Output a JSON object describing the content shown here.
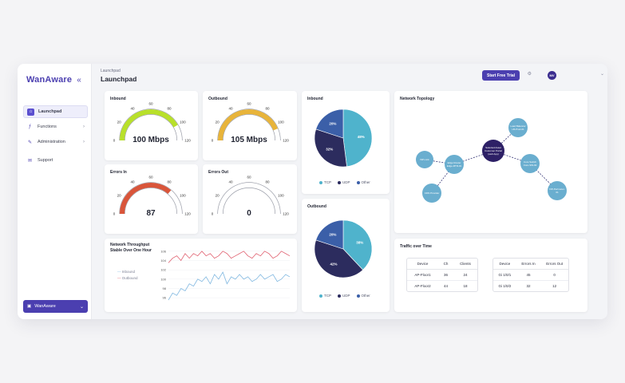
{
  "app": {
    "name": "WanAware"
  },
  "sidebar": {
    "items": [
      {
        "label": "Launchpad",
        "icon": "home-icon",
        "active": true
      },
      {
        "label": "Functions",
        "icon": "function-icon"
      },
      {
        "label": "Administration",
        "icon": "wrench-icon"
      },
      {
        "label": "Support",
        "icon": "mail-icon"
      }
    ],
    "workspace": "WanAware"
  },
  "header": {
    "breadcrumb": "Launchpad",
    "title": "Launchpad",
    "trial_label": "Start Free Trial",
    "avatar_initials": "MV"
  },
  "gauges": [
    {
      "title": "Inbound",
      "value_label": "100 Mbps",
      "value": 100,
      "max": 120,
      "color": "#b8e02a",
      "ticks": [
        "0",
        "20",
        "40",
        "60",
        "80",
        "100",
        "120"
      ]
    },
    {
      "title": "Outbound",
      "value_label": "105 Mbps",
      "value": 105,
      "max": 120,
      "color": "#e8b43a",
      "ticks": [
        "0",
        "20",
        "40",
        "60",
        "80",
        "100",
        "120"
      ]
    },
    {
      "title": "Errors In",
      "value_label": "87",
      "value": 87,
      "max": 120,
      "color": "#d9553a",
      "ticks": [
        "0",
        "20",
        "40",
        "60",
        "80",
        "100",
        "120"
      ]
    },
    {
      "title": "Errors Out",
      "value_label": "0",
      "value": 0,
      "max": 120,
      "color": "#cccccc",
      "ticks": [
        "0",
        "20",
        "40",
        "60",
        "80",
        "100",
        "120"
      ]
    }
  ],
  "pies": [
    {
      "title": "Inbound",
      "slices": [
        {
          "label": "TCP",
          "value": 48,
          "color": "#4fb3cc"
        },
        {
          "label": "UDP",
          "value": 32,
          "color": "#2c2c5e"
        },
        {
          "label": "Other",
          "value": 20,
          "color": "#3b5fa8"
        }
      ],
      "labels": [
        "48%",
        "32%",
        "20%"
      ]
    },
    {
      "title": "Outbound",
      "slices": [
        {
          "label": "TCP",
          "value": 38,
          "color": "#4fb3cc"
        },
        {
          "label": "UDP",
          "value": 42,
          "color": "#2c2c5e"
        },
        {
          "label": "Other",
          "value": 20,
          "color": "#3b5fa8"
        }
      ],
      "labels": [
        "38%",
        "42%",
        "20%"
      ]
    }
  ],
  "throughput": {
    "title": "Network Throughput",
    "subtitle": "Stable Over One Hour",
    "legend": [
      {
        "name": "Inbound",
        "color": "#7fb7e0"
      },
      {
        "name": "Outbound",
        "color": "#e06070"
      }
    ],
    "yticks": [
      "106",
      "104",
      "102",
      "100",
      "98",
      "96"
    ]
  },
  "chart_data": {
    "type": "line",
    "title": "Network Throughput",
    "subtitle": "Stable Over One Hour",
    "ylim": [
      95,
      107
    ],
    "series": [
      {
        "name": "Inbound",
        "values": [
          95.5,
          97,
          96.5,
          98,
          97.5,
          99,
          98.5,
          100,
          99.5,
          100.5,
          99,
          101,
          100,
          101.5,
          99,
          100.5,
          100,
          101,
          100,
          100.5,
          99.5,
          100,
          101,
          100,
          100.5,
          101,
          99.5,
          100,
          101,
          100.5
        ]
      },
      {
        "name": "Outbound",
        "values": [
          103.5,
          104.5,
          105,
          104,
          105.5,
          104.5,
          105.5,
          105,
          106,
          105,
          105.5,
          104.5,
          105,
          106,
          105.5,
          104.5,
          105,
          105.5,
          106,
          105,
          104.5,
          105.5,
          105,
          106,
          105.5,
          104.5,
          105,
          106,
          105.5,
          105
        ]
      }
    ]
  },
  "topology": {
    "title": "Network Topology",
    "center": "Selected Asset Customer Portal (web App)",
    "nodes": [
      "Load Balancer LB-Prod-01",
      "Edge Router Edge-RTR-01",
      "ISP-Link",
      "Core Switch Core-SW-02",
      "CDN Provider",
      "FW-Perimeter-01"
    ]
  },
  "traffic": {
    "title": "Traffic over Time",
    "table1": {
      "headers": [
        "Device",
        "Ch",
        "Clients"
      ],
      "rows": [
        [
          "AP-Floor1",
          "36",
          "24"
        ],
        [
          "AP-Floor2",
          "44",
          "18"
        ]
      ]
    },
    "table2": {
      "headers": [
        "Device",
        "Errors In",
        "Errors Out"
      ],
      "rows": [
        [
          "Gi 1/0/1",
          "45",
          "0"
        ],
        [
          "Gi 1/0/2",
          "32",
          "12"
        ]
      ]
    }
  }
}
